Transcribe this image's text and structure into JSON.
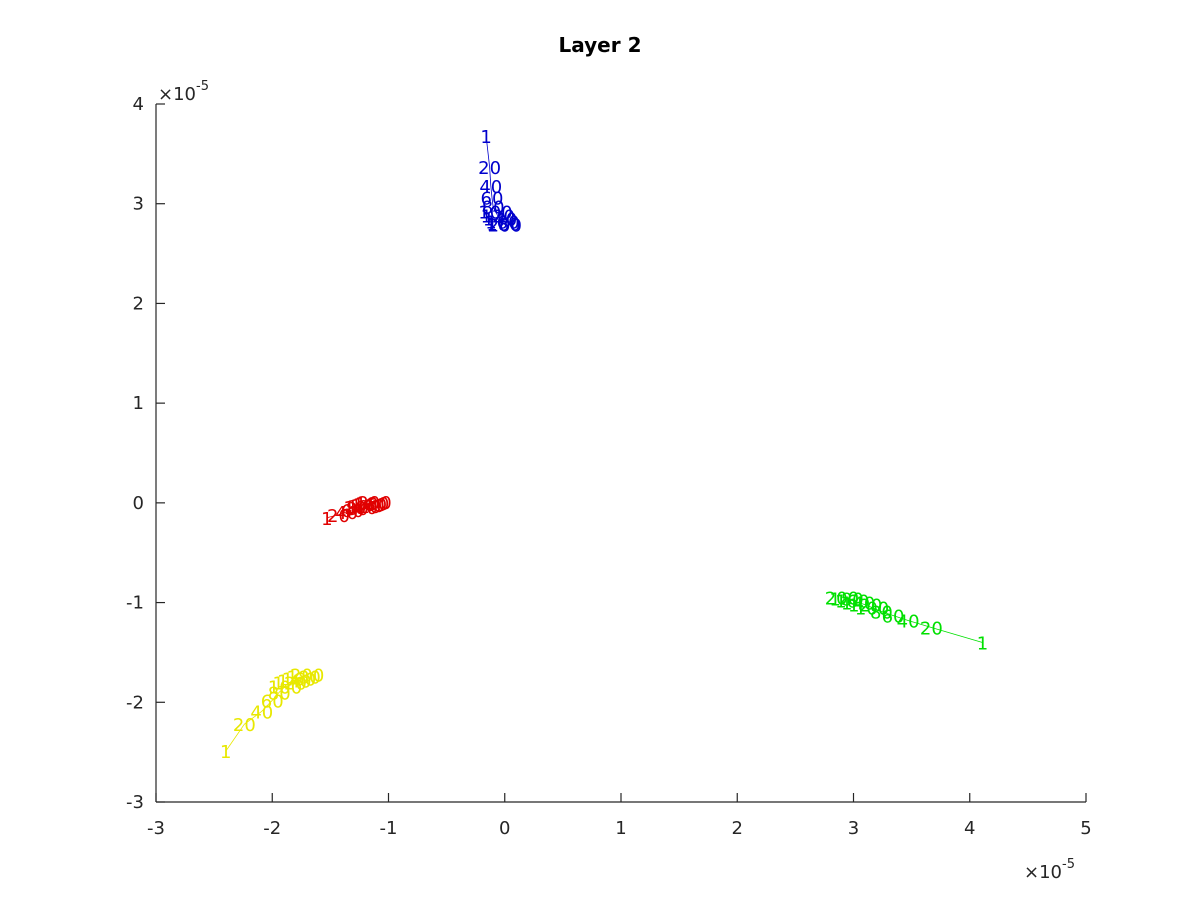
{
  "chart_data": {
    "type": "line",
    "title": "Layer 2",
    "xlabel": "",
    "ylabel": "",
    "xlim": [
      -3e-05,
      5e-05
    ],
    "ylim": [
      -3e-05,
      4e-05
    ],
    "x_ticks": [
      -3,
      -2,
      -1,
      0,
      1,
      2,
      3,
      4,
      5
    ],
    "y_ticks": [
      -3,
      -2,
      -1,
      0,
      1,
      2,
      3,
      4
    ],
    "x_exponent_label": "×10^-5",
    "y_exponent_label": "×10^-5",
    "grid": false,
    "legend": "none",
    "series": [
      {
        "color": "#0000cc",
        "points": [
          {
            "label": "1",
            "x": -1.6e-06,
            "y": 3.68e-05
          },
          {
            "label": "20",
            "x": -1.3e-06,
            "y": 3.37e-05
          },
          {
            "label": "40",
            "x": -1.2e-06,
            "y": 3.18e-05
          },
          {
            "label": "60",
            "x": -1.1e-06,
            "y": 3.06e-05
          },
          {
            "label": "80",
            "x": -1e-06,
            "y": 2.97e-05
          },
          {
            "label": "100",
            "x": -8e-07,
            "y": 2.92e-05
          },
          {
            "label": "120",
            "x": -6e-07,
            "y": 2.88e-05
          },
          {
            "label": "140",
            "x": -4e-07,
            "y": 2.85e-05
          },
          {
            "label": "160",
            "x": -2e-07,
            "y": 2.82e-05
          },
          {
            "label": "180",
            "x": -1e-07,
            "y": 2.8e-05
          },
          {
            "label": "200",
            "x": 0.0,
            "y": 2.79e-05
          }
        ]
      },
      {
        "color": "#e00000",
        "points": [
          {
            "label": "1",
            "x": -1.53e-05,
            "y": -1.5e-06
          },
          {
            "label": "20",
            "x": -1.43e-05,
            "y": -1.2e-06
          },
          {
            "label": "40",
            "x": -1.36e-05,
            "y": -9e-07
          },
          {
            "label": "60",
            "x": -1.31e-05,
            "y": -7e-07
          },
          {
            "label": "80",
            "x": -1.27e-05,
            "y": -5e-07
          },
          {
            "label": "100",
            "x": -1.24e-05,
            "y": -4e-07
          },
          {
            "label": "120",
            "x": -1.21e-05,
            "y": -3e-07
          },
          {
            "label": "140",
            "x": -1.18e-05,
            "y": -2e-07
          },
          {
            "label": "160",
            "x": -1.16e-05,
            "y": -1e-07
          },
          {
            "label": "180",
            "x": -1.14e-05,
            "y": 0.0
          },
          {
            "label": "200",
            "x": -1.12e-05,
            "y": 1e-07
          }
        ]
      },
      {
        "color": "#00e000",
        "points": [
          {
            "label": "1",
            "x": 4.11e-05,
            "y": -1.4e-05
          },
          {
            "label": "20",
            "x": 3.67e-05,
            "y": -1.25e-05
          },
          {
            "label": "40",
            "x": 3.47e-05,
            "y": -1.18e-05
          },
          {
            "label": "60",
            "x": 3.34e-05,
            "y": -1.13e-05
          },
          {
            "label": "80",
            "x": 3.24e-05,
            "y": -1.09e-05
          },
          {
            "label": "100",
            "x": 3.16e-05,
            "y": -1.05e-05
          },
          {
            "label": "120",
            "x": 3.1e-05,
            "y": -1.02e-05
          },
          {
            "label": "140",
            "x": 3.04e-05,
            "y": -1e-05
          },
          {
            "label": "160",
            "x": 2.99e-05,
            "y": -9.8e-06
          },
          {
            "label": "180",
            "x": 2.94e-05,
            "y": -9.6e-06
          },
          {
            "label": "200",
            "x": 2.9e-05,
            "y": -9.5e-06
          }
        ]
      },
      {
        "color": "#e8e800",
        "points": [
          {
            "label": "1",
            "x": -2.4e-05,
            "y": -2.49e-05
          },
          {
            "label": "20",
            "x": -2.24e-05,
            "y": -2.22e-05
          },
          {
            "label": "40",
            "x": -2.09e-05,
            "y": -2.09e-05
          },
          {
            "label": "60",
            "x": -2e-05,
            "y": -1.98e-05
          },
          {
            "label": "80",
            "x": -1.94e-05,
            "y": -1.9e-05
          },
          {
            "label": "100",
            "x": -1.89e-05,
            "y": -1.84e-05
          },
          {
            "label": "120",
            "x": -1.85e-05,
            "y": -1.8e-05
          },
          {
            "label": "140",
            "x": -1.81e-05,
            "y": -1.78e-05
          },
          {
            "label": "160",
            "x": -1.77e-05,
            "y": -1.76e-05
          },
          {
            "label": "180",
            "x": -1.73e-05,
            "y": -1.74e-05
          },
          {
            "label": "200",
            "x": -1.7e-05,
            "y": -1.72e-05
          }
        ]
      }
    ]
  }
}
